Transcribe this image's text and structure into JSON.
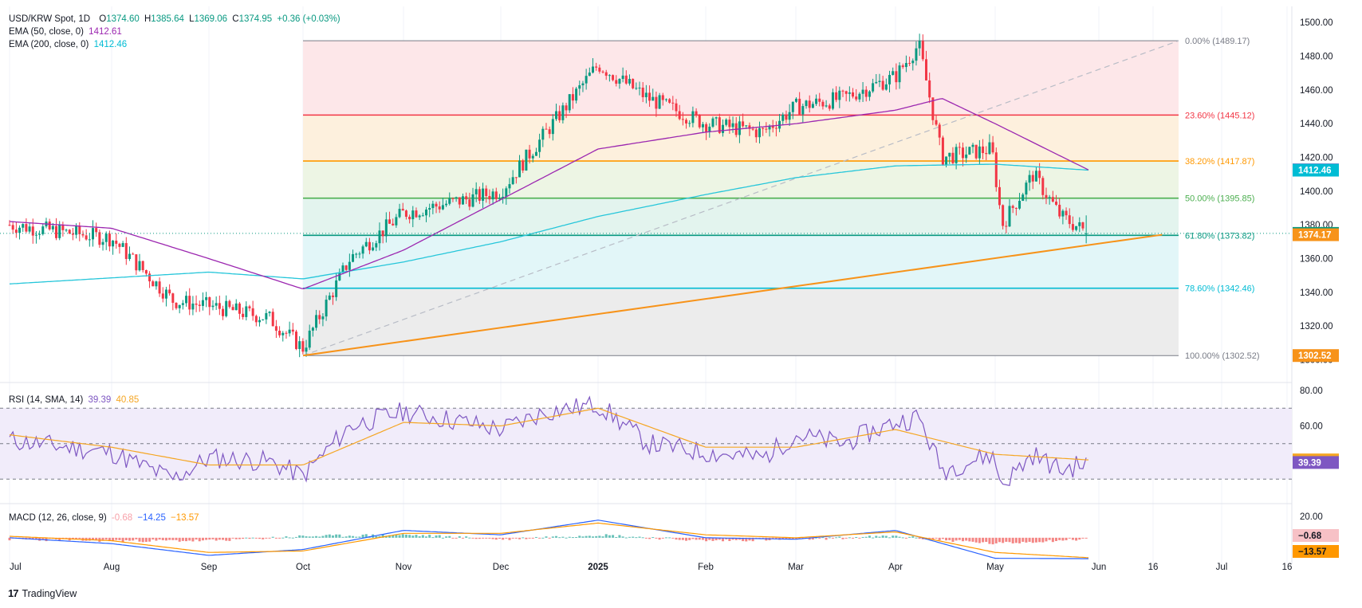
{
  "header": {
    "symbol": "USD/KRW Spot, 1D",
    "open_label": "O",
    "open": "1374.60",
    "high_label": "H",
    "high": "1385.64",
    "low_label": "L",
    "low": "1369.06",
    "close_label": "C",
    "close": "1374.95",
    "change": "+0.36 (+0.03%)",
    "ema50_label": "EMA (50, close, 0)",
    "ema50_value": "1412.61",
    "ema200_label": "EMA (200, close, 0)",
    "ema200_value": "1412.46",
    "rsi_label": "RSI (14, SMA, 14)",
    "rsi_value": "39.39",
    "rsi_sma_value": "40.85",
    "macd_label": "MACD (12, 26, close, 9)",
    "macd_hist": "-0.68",
    "macd_line": "−14.25",
    "macd_signal": "−13.57"
  },
  "brand": {
    "logo": "17",
    "name": "TradingView"
  },
  "colors": {
    "up": "#089981",
    "down": "#f23645",
    "ema50": "#9c27b0",
    "ema200": "#26c6da",
    "rsi": "#7e57c2",
    "rsi_sma": "#f5a623",
    "macd": "#2962ff",
    "signal": "#ff9800",
    "trendline": "#f7931a",
    "grid": "#f0f3fa"
  },
  "chart_data": [
    {
      "type": "candlestick",
      "title": "USD/KRW Spot, 1D",
      "x_ticks": [
        "Jul",
        "Aug",
        "Sep",
        "Oct",
        "Nov",
        "Dec",
        "2025",
        "Feb",
        "Mar",
        "Apr",
        "May",
        "Jun",
        "16",
        "Jul",
        "16"
      ],
      "y_ticks": [
        "1500.00",
        "1480.00",
        "1460.00",
        "1440.00",
        "1420.00",
        "1400.00",
        "1380.00",
        "1360.00",
        "1340.00",
        "1320.00",
        "1300.00"
      ],
      "ylim": [
        1296,
        1502
      ],
      "last": {
        "open": 1374.6,
        "high": 1385.64,
        "low": 1369.06,
        "close": 1374.95
      },
      "price_anchors": [
        [
          "Jul",
          1380
        ],
        [
          "Aug",
          1372
        ],
        [
          "Aug 20",
          1335
        ],
        [
          "Sep",
          1332
        ],
        [
          "Sep 20",
          1325
        ],
        [
          "Oct",
          1307
        ],
        [
          "Oct 15",
          1360
        ],
        [
          "Nov",
          1387
        ],
        [
          "Nov 20",
          1395
        ],
        [
          "Dec",
          1400
        ],
        [
          "Dec 15",
          1435
        ],
        [
          "2025",
          1475
        ],
        [
          "Jan 15",
          1455
        ],
        [
          "Feb",
          1440
        ],
        [
          "Feb 20",
          1435
        ],
        [
          "Mar",
          1450
        ],
        [
          "Mar 15",
          1455
        ],
        [
          "Apr",
          1468
        ],
        [
          "Apr 8",
          1487
        ],
        [
          "Apr 15",
          1420
        ],
        [
          "Apr 30",
          1425
        ],
        [
          "May 3",
          1380
        ],
        [
          "May 12",
          1410
        ],
        [
          "May 20",
          1385
        ],
        [
          "May 28",
          1375
        ]
      ],
      "fibonacci": {
        "levels": [
          {
            "label": "0.00% (1489.17)",
            "price": 1489.17,
            "color": "#787b86"
          },
          {
            "label": "23.60% (1445.12)",
            "price": 1445.12,
            "color": "#f23645"
          },
          {
            "label": "38.20% (1417.87)",
            "price": 1417.87,
            "color": "#ff9800"
          },
          {
            "label": "50.00% (1395.85)",
            "price": 1395.85,
            "color": "#4caf50"
          },
          {
            "label": "61.80% (1373.82)",
            "price": 1373.82,
            "color": "#089981"
          },
          {
            "label": "78.60% (1342.46)",
            "price": 1342.46,
            "color": "#00bcd4"
          },
          {
            "label": "100.00% (1302.52)",
            "price": 1302.52,
            "color": "#787b86"
          }
        ],
        "fills": [
          "#fde7e9",
          "#fdf0dd",
          "#edf5e4",
          "#e3f4ee",
          "#e2f6f8",
          "#ececec"
        ]
      },
      "ema50_anchors": [
        [
          "Jul",
          1382
        ],
        [
          "Aug",
          1378
        ],
        [
          "Sep",
          1360
        ],
        [
          "Oct",
          1342
        ],
        [
          "Nov",
          1365
        ],
        [
          "Dec",
          1395
        ],
        [
          "2025",
          1425
        ],
        [
          "Feb",
          1435
        ],
        [
          "Mar",
          1440
        ],
        [
          "Apr",
          1448
        ],
        [
          "Apr 15",
          1455
        ],
        [
          "May",
          1440
        ],
        [
          "May 28",
          1412.61
        ]
      ],
      "ema200_anchors": [
        [
          "Jul",
          1345
        ],
        [
          "Sep",
          1352
        ],
        [
          "Oct",
          1348
        ],
        [
          "Nov",
          1358
        ],
        [
          "Dec",
          1370
        ],
        [
          "2025",
          1385
        ],
        [
          "Feb",
          1398
        ],
        [
          "Mar",
          1408
        ],
        [
          "Apr",
          1415
        ],
        [
          "May",
          1416
        ],
        [
          "May 28",
          1412.46
        ]
      ],
      "trendline": [
        [
          "Oct",
          1302.52
        ],
        [
          "Jun 20",
          1374.17
        ]
      ],
      "price_labels": [
        {
          "text": "1412.61",
          "price": 1412.61,
          "color": "#9c27b0"
        },
        {
          "text": "1412.46",
          "price": 1412.46,
          "color": "#00bcd4"
        },
        {
          "text": "1374.95",
          "price": 1374.95,
          "color": "#089981"
        },
        {
          "text": "1374.17",
          "price": 1374.17,
          "color": "#f7931a"
        },
        {
          "text": "1302.52",
          "price": 1302.52,
          "color": "#f7931a"
        }
      ]
    },
    {
      "type": "line",
      "title": "RSI (14, SMA, 14)",
      "y_ticks": [
        "80.00",
        "60.00",
        "20.00"
      ],
      "ylim": [
        18,
        80
      ],
      "bands": [
        70,
        50,
        30
      ],
      "series": [
        {
          "name": "RSI",
          "anchors": [
            [
              "Jul",
              52
            ],
            [
              "Aug",
              45
            ],
            [
              "Aug 20",
              30
            ],
            [
              "Sep",
              42
            ],
            [
              "Sep 20",
              40
            ],
            [
              "Oct",
              32
            ],
            [
              "Oct 15",
              60
            ],
            [
              "Nov",
              68
            ],
            [
              "Nov 20",
              62
            ],
            [
              "Dec",
              58
            ],
            [
              "Dec 15",
              68
            ],
            [
              "2025",
              72
            ],
            [
              "Jan 15",
              50
            ],
            [
              "Feb",
              45
            ],
            [
              "Feb 20",
              42
            ],
            [
              "Mar",
              55
            ],
            [
              "Mar 15",
              50
            ],
            [
              "Apr",
              62
            ],
            [
              "Apr 8",
              65
            ],
            [
              "Apr 15",
              35
            ],
            [
              "Apr 30",
              44
            ],
            [
              "May 3",
              27
            ],
            [
              "May 12",
              44
            ],
            [
              "May 20",
              35
            ],
            [
              "May 28",
              39.39
            ]
          ]
        },
        {
          "name": "SMA",
          "anchors": [
            [
              "Jul",
              55
            ],
            [
              "Aug",
              48
            ],
            [
              "Sep",
              38
            ],
            [
              "Oct",
              38
            ],
            [
              "Nov",
              62
            ],
            [
              "Dec",
              60
            ],
            [
              "2025",
              70
            ],
            [
              "Feb",
              48
            ],
            [
              "Mar",
              48
            ],
            [
              "Apr",
              58
            ],
            [
              "May",
              44
            ],
            [
              "May 28",
              40.85
            ]
          ]
        }
      ],
      "price_labels": [
        {
          "text": "40.85",
          "value": 40.85,
          "color": "#f5a623"
        },
        {
          "text": "39.39",
          "value": 39.39,
          "color": "#7e57c2"
        }
      ]
    },
    {
      "type": "bar",
      "title": "MACD (12, 26, close, 9)",
      "y_ticks": [
        "20.00"
      ],
      "ylim": [
        -18,
        20
      ],
      "series": [
        {
          "name": "MACD",
          "anchors": [
            [
              "Jul",
              0
            ],
            [
              "Aug",
              -4
            ],
            [
              "Sep",
              -12
            ],
            [
              "Oct",
              -8
            ],
            [
              "Nov",
              5
            ],
            [
              "Dec",
              2
            ],
            [
              "2025",
              12
            ],
            [
              "Feb",
              0
            ],
            [
              "Mar",
              -1
            ],
            [
              "Apr",
              5
            ],
            [
              "May",
              -14
            ],
            [
              "May 28",
              -14.25
            ]
          ]
        },
        {
          "name": "Signal",
          "anchors": [
            [
              "Jul",
              1
            ],
            [
              "Aug",
              -2
            ],
            [
              "Sep",
              -10
            ],
            [
              "Oct",
              -9
            ],
            [
              "Nov",
              3
            ],
            [
              "Dec",
              3
            ],
            [
              "2025",
              10
            ],
            [
              "Feb",
              2
            ],
            [
              "Mar",
              0
            ],
            [
              "Apr",
              4
            ],
            [
              "May",
              -10
            ],
            [
              "May 28",
              -13.57
            ]
          ]
        }
      ],
      "price_labels": [
        {
          "text": "−0.68",
          "value": -0.68,
          "color": "#f7c1c6"
        },
        {
          "text": "−13.57",
          "value": -13.57,
          "color": "#ff9800"
        }
      ]
    }
  ]
}
